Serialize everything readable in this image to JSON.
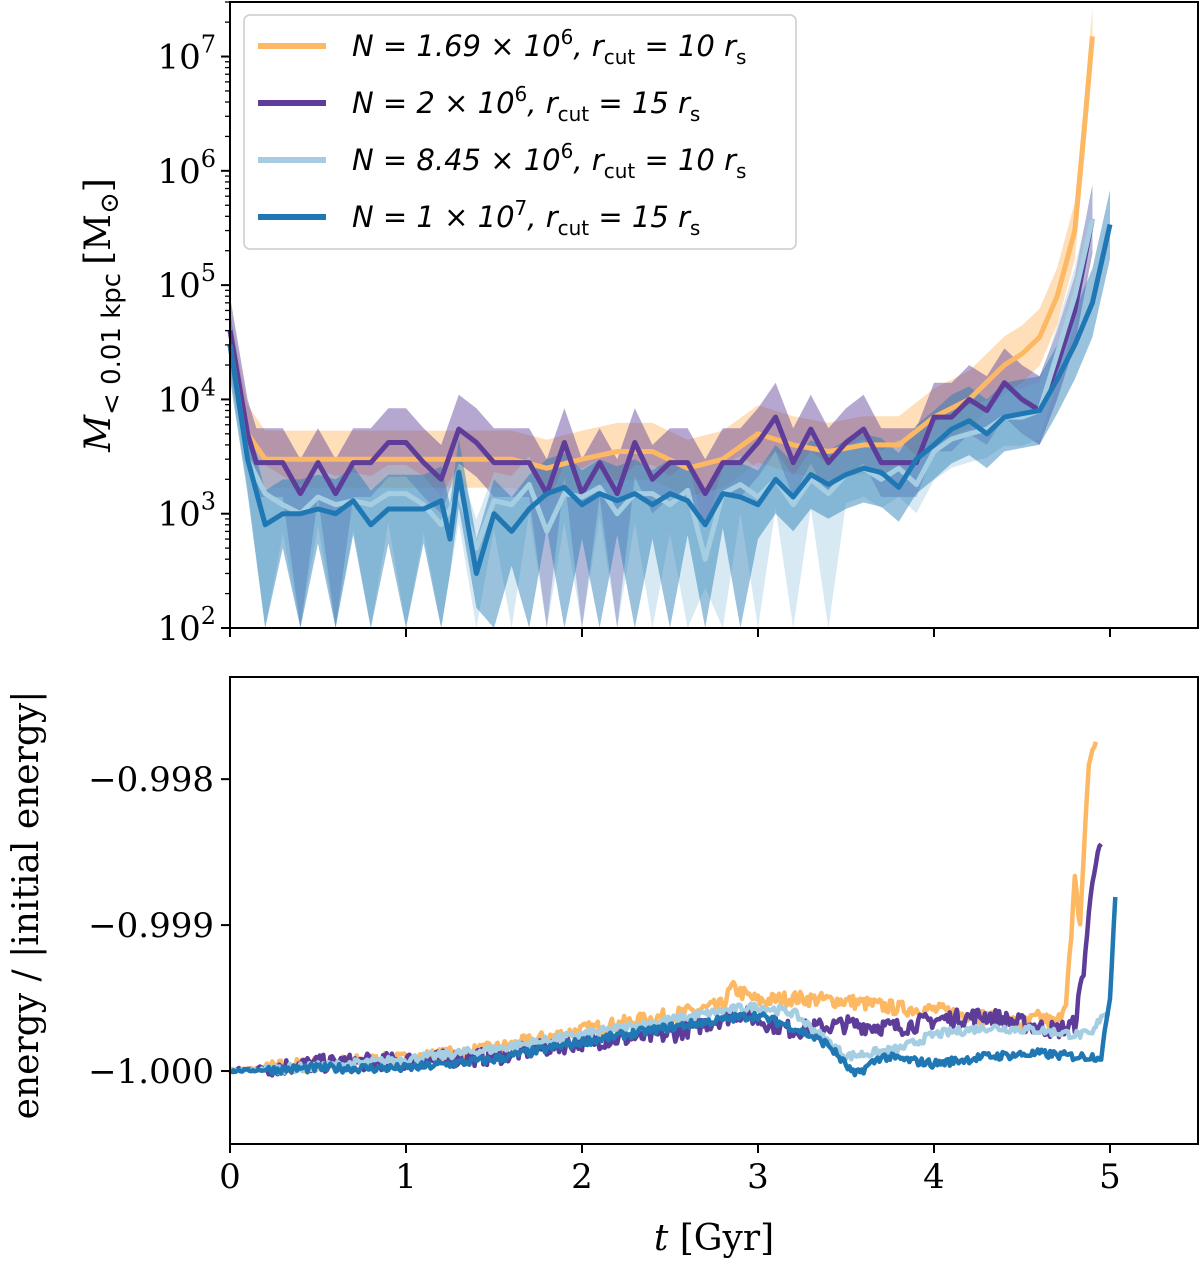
{
  "colors": {
    "orange": "#fdb863",
    "purple": "#5e3c99",
    "lightblue": "#a6cee3",
    "blue": "#1f78b4"
  },
  "chart_data": [
    {
      "type": "line",
      "panel": "top",
      "yscale": "log",
      "xlim": [
        0,
        5.5
      ],
      "ylim": [
        100,
        30000000
      ],
      "ylabel_main": "M",
      "ylabel_sub": "< 0.01 kpc",
      "ylabel_unit": "[M",
      "ylabel_unit_sub": "⊙",
      "ylabel_unit_close": "]",
      "y_ticks": [
        {
          "value": 100,
          "base": "10",
          "exp": "2"
        },
        {
          "value": 1000,
          "base": "10",
          "exp": "3"
        },
        {
          "value": 10000,
          "base": "10",
          "exp": "4"
        },
        {
          "value": 100000,
          "base": "10",
          "exp": "5"
        },
        {
          "value": 1000000,
          "base": "10",
          "exp": "6"
        },
        {
          "value": 10000000,
          "base": "10",
          "exp": "7"
        }
      ],
      "legend_position": "top-left",
      "legend": [
        {
          "key": "orange",
          "parts": [
            "N = 1.69 × 10",
            "6",
            ", r",
            "cut",
            " = 10 r",
            "s"
          ]
        },
        {
          "key": "purple",
          "parts": [
            "N = 2 × 10",
            "6",
            ", r",
            "cut",
            " = 15 r",
            "s"
          ]
        },
        {
          "key": "lightblue",
          "parts": [
            "N = 8.45 × 10",
            "6",
            ", r",
            "cut",
            " = 10 r",
            "s"
          ]
        },
        {
          "key": "blue",
          "parts": [
            "N = 1 × 10",
            "7",
            ", r",
            "cut",
            " = 15 r",
            "s"
          ]
        }
      ],
      "series": [
        {
          "key": "orange",
          "band": 0.25,
          "x": [
            0,
            0.1,
            0.2,
            0.4,
            0.6,
            0.8,
            1.0,
            1.2,
            1.4,
            1.6,
            1.8,
            2.0,
            2.2,
            2.4,
            2.6,
            2.8,
            3.0,
            3.2,
            3.4,
            3.6,
            3.8,
            4.0,
            4.2,
            4.4,
            4.5,
            4.6,
            4.7,
            4.8,
            4.85,
            4.9
          ],
          "y": [
            30000,
            5000,
            3000,
            3000,
            3000,
            3000,
            3000,
            3000,
            3000,
            3000,
            2500,
            3000,
            3500,
            3500,
            2500,
            3000,
            5000,
            4000,
            3500,
            4000,
            4000,
            7000,
            10000,
            20000,
            25000,
            35000,
            80000,
            300000,
            2000000,
            15000000
          ]
        },
        {
          "key": "purple",
          "band": 0.3,
          "x": [
            0,
            0.1,
            0.15,
            0.3,
            0.4,
            0.5,
            0.6,
            0.7,
            0.8,
            0.9,
            1.0,
            1.1,
            1.2,
            1.3,
            1.4,
            1.5,
            1.6,
            1.7,
            1.8,
            1.9,
            2.0,
            2.1,
            2.2,
            2.3,
            2.4,
            2.5,
            2.6,
            2.7,
            2.8,
            2.9,
            3.0,
            3.1,
            3.2,
            3.3,
            3.4,
            3.5,
            3.6,
            3.7,
            3.8,
            3.9,
            4.0,
            4.1,
            4.2,
            4.3,
            4.4,
            4.5,
            4.6,
            4.7,
            4.8,
            4.9
          ],
          "y": [
            40000,
            5000,
            2800,
            2800,
            1500,
            2800,
            1500,
            2800,
            2800,
            4200,
            4200,
            2800,
            2000,
            5500,
            4200,
            2800,
            2800,
            2800,
            1500,
            4200,
            1500,
            2800,
            1500,
            4200,
            2000,
            2800,
            2800,
            1500,
            2800,
            2800,
            4200,
            7000,
            2800,
            5500,
            2800,
            4200,
            5500,
            2800,
            2800,
            2800,
            7000,
            7000,
            10000,
            8000,
            14000,
            10000,
            8000,
            20000,
            60000,
            380000
          ]
        },
        {
          "key": "lightblue",
          "band": 0.25,
          "x": [
            0,
            0.1,
            0.2,
            0.3,
            0.4,
            0.5,
            0.6,
            0.7,
            0.8,
            0.9,
            1.0,
            1.1,
            1.2,
            1.3,
            1.4,
            1.5,
            1.6,
            1.7,
            1.8,
            1.9,
            2.0,
            2.1,
            2.2,
            2.3,
            2.4,
            2.5,
            2.6,
            2.7,
            2.8,
            2.9,
            3.0,
            3.1,
            3.2,
            3.3,
            3.4,
            3.5,
            3.6,
            3.7,
            3.8,
            3.9,
            4.0,
            4.1,
            4.2,
            4.3,
            4.4,
            4.5,
            4.6,
            4.7,
            4.8,
            4.9
          ],
          "y": [
            30000,
            3000,
            1500,
            1200,
            1000,
            1400,
            1200,
            1300,
            1200,
            1500,
            1500,
            1200,
            800,
            1500,
            500,
            1300,
            1200,
            1800,
            700,
            1500,
            1400,
            1700,
            1000,
            1500,
            1500,
            1200,
            1600,
            400,
            1500,
            1800,
            1400,
            2000,
            1200,
            2000,
            1500,
            2200,
            2500,
            2000,
            2500,
            1800,
            3500,
            4500,
            5000,
            5500,
            7000,
            7000,
            8000,
            25000,
            80000,
            380000
          ]
        },
        {
          "key": "blue",
          "band": 0.3,
          "x": [
            0,
            0.1,
            0.2,
            0.3,
            0.4,
            0.5,
            0.6,
            0.7,
            0.8,
            0.9,
            1.0,
            1.1,
            1.2,
            1.25,
            1.3,
            1.4,
            1.5,
            1.6,
            1.7,
            1.8,
            1.9,
            2.0,
            2.1,
            2.2,
            2.3,
            2.4,
            2.5,
            2.6,
            2.7,
            2.8,
            2.9,
            3.0,
            3.1,
            3.2,
            3.3,
            3.4,
            3.5,
            3.6,
            3.7,
            3.8,
            3.9,
            4.0,
            4.1,
            4.2,
            4.3,
            4.4,
            4.5,
            4.6,
            4.7,
            4.8,
            4.9,
            5.0
          ],
          "y": [
            30000,
            3000,
            800,
            1000,
            1000,
            1100,
            1000,
            1300,
            800,
            1100,
            1100,
            1100,
            1300,
            600,
            2300,
            300,
            1000,
            700,
            1100,
            1500,
            1700,
            1200,
            1500,
            1300,
            1500,
            1200,
            1500,
            1300,
            800,
            1500,
            1400,
            1200,
            2000,
            1400,
            2200,
            1800,
            2200,
            2500,
            2300,
            1700,
            3000,
            4000,
            5500,
            6500,
            5000,
            7000,
            7500,
            8000,
            15000,
            30000,
            70000,
            340000
          ]
        }
      ]
    },
    {
      "type": "line",
      "panel": "bottom",
      "xlim": [
        0,
        5.5
      ],
      "ylim": [
        -1.0005,
        -0.9973
      ],
      "xlabel_var": "t",
      "xlabel_unit": " [Gyr]",
      "ylabel": "energy / |initial energy|",
      "x_ticks": [
        0,
        1,
        2,
        3,
        4,
        5
      ],
      "y_ticks": [
        {
          "value": -1.0,
          "label": "−1.000"
        },
        {
          "value": -0.999,
          "label": "−0.999"
        },
        {
          "value": -0.998,
          "label": "−0.998"
        }
      ],
      "series": [
        {
          "key": "orange",
          "noise": 5e-05,
          "x": [
            0,
            0.5,
            1.0,
            1.5,
            2.0,
            2.5,
            2.8,
            2.85,
            3.0,
            3.2,
            3.5,
            3.8,
            4.0,
            4.3,
            4.5,
            4.6,
            4.7,
            4.75,
            4.78,
            4.8,
            4.83,
            4.86,
            4.88,
            4.9,
            4.92
          ],
          "y": [
            -1.0,
            -0.99995,
            -0.99992,
            -0.99985,
            -0.99972,
            -0.99962,
            -0.99955,
            -0.99943,
            -0.99952,
            -0.9995,
            -0.99952,
            -0.99957,
            -0.99958,
            -0.99963,
            -0.99968,
            -0.99963,
            -0.99968,
            -0.9995,
            -0.9991,
            -0.9987,
            -0.999,
            -0.9983,
            -0.9979,
            -0.9978,
            -0.99775
          ]
        },
        {
          "key": "purple",
          "noise": 6e-05,
          "x": [
            0,
            0.5,
            1.0,
            1.5,
            2.0,
            2.5,
            2.9,
            3.0,
            3.2,
            3.5,
            3.8,
            4.0,
            4.3,
            4.6,
            4.7,
            4.8,
            4.85,
            4.9,
            4.93,
            4.95
          ],
          "y": [
            -1.0,
            -0.99995,
            -0.99993,
            -0.9999,
            -0.9998,
            -0.99975,
            -0.9996,
            -0.99965,
            -0.99972,
            -0.99968,
            -0.9997,
            -0.99965,
            -0.99962,
            -0.9997,
            -0.99972,
            -0.99968,
            -0.9993,
            -0.9987,
            -0.9985,
            -0.99845
          ]
        },
        {
          "key": "lightblue",
          "noise": 3e-05,
          "x": [
            0,
            0.5,
            1.0,
            1.5,
            2.0,
            2.5,
            2.9,
            3.0,
            3.2,
            3.5,
            3.8,
            4.0,
            4.3,
            4.6,
            4.8,
            4.9,
            4.95,
            5.0
          ],
          "y": [
            -1.0,
            -0.99997,
            -0.99992,
            -0.99985,
            -0.99975,
            -0.99965,
            -0.99957,
            -0.99956,
            -0.9996,
            -0.9999,
            -0.99985,
            -0.99975,
            -0.9997,
            -0.99972,
            -0.99975,
            -0.99975,
            -0.99962,
            -0.9996
          ]
        },
        {
          "key": "blue",
          "noise": 3e-05,
          "x": [
            0,
            0.5,
            1.0,
            1.5,
            2.0,
            2.5,
            2.9,
            3.0,
            3.2,
            3.4,
            3.55,
            3.7,
            4.0,
            4.3,
            4.6,
            4.8,
            4.95,
            5.0,
            5.03
          ],
          "y": [
            -1.0,
            -0.99998,
            -0.99998,
            -0.99992,
            -0.9998,
            -0.9997,
            -0.99963,
            -0.99962,
            -0.9997,
            -0.99982,
            -1.00003,
            -0.9999,
            -0.99995,
            -0.9999,
            -0.99988,
            -0.9999,
            -0.9999,
            -0.9995,
            -0.9988
          ]
        }
      ]
    }
  ]
}
